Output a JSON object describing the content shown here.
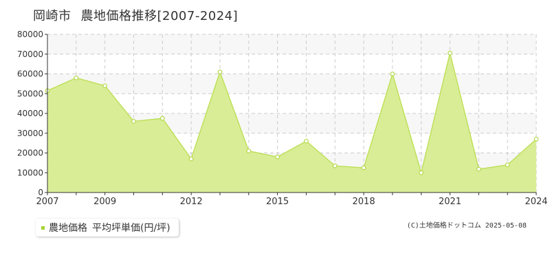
{
  "header": {
    "city": "岡崎市",
    "subtitle": "農地価格推移[2007-2024]"
  },
  "legend": {
    "series_name": "農地価格",
    "unit_label": "平均坪単価(円/坪)"
  },
  "credit": "(C)土地価格ドットコム 2025-05-08",
  "colors": {
    "area_fill": "#d9ed97",
    "line": "#bfe05a",
    "point_fill": "#ffffff",
    "point_stroke": "#b5d94a",
    "grid": "#cccccc",
    "band": "#f7f7f7",
    "legend_marker": "#a8d430"
  },
  "chart_data": {
    "type": "area",
    "title": "岡崎市 農地価格推移[2007-2024]",
    "xlabel": "",
    "ylabel": "",
    "x": [
      2007,
      2008,
      2009,
      2010,
      2011,
      2012,
      2013,
      2014,
      2015,
      2016,
      2017,
      2018,
      2019,
      2020,
      2021,
      2022,
      2023,
      2024
    ],
    "series": [
      {
        "name": "農地価格",
        "values": [
          51500,
          58000,
          54000,
          36000,
          37500,
          17000,
          61000,
          21000,
          18000,
          26000,
          13500,
          12500,
          60000,
          10000,
          70500,
          11800,
          14000,
          27000
        ]
      }
    ],
    "ylim": [
      0,
      80000
    ],
    "yticks": [
      0,
      10000,
      20000,
      30000,
      40000,
      50000,
      60000,
      70000,
      80000
    ],
    "xlim": [
      2007,
      2024
    ],
    "xtick_labels": [
      2007,
      2009,
      2012,
      2015,
      2018,
      2021,
      2024
    ],
    "grid": true,
    "legend_position": "bottom-left"
  }
}
